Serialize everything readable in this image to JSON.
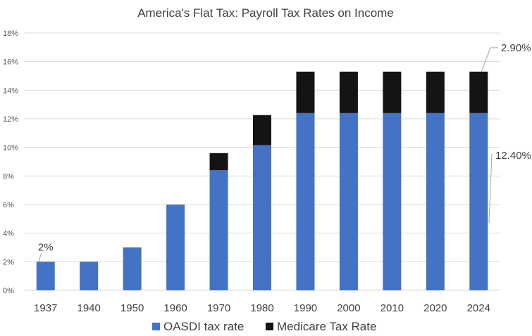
{
  "chart_data": {
    "type": "bar",
    "stacked": true,
    "title": "America's Flat Tax: Payroll Tax Rates on Income",
    "xlabel": "",
    "ylabel": "",
    "ylim": [
      0,
      18
    ],
    "y_ticks": [
      "0%",
      "2%",
      "4%",
      "6%",
      "8%",
      "10%",
      "12%",
      "14%",
      "16%",
      "18%"
    ],
    "categories": [
      "1937",
      "1940",
      "1950",
      "1960",
      "1970",
      "1980",
      "1990",
      "2000",
      "2010",
      "2020",
      "2024"
    ],
    "series": [
      {
        "name": "OASDI tax rate",
        "color": "#4472c4",
        "values": [
          2.0,
          2.0,
          3.0,
          6.0,
          8.4,
          10.16,
          12.4,
          12.4,
          12.4,
          12.4,
          12.4
        ]
      },
      {
        "name": "Medicare Tax Rate",
        "color": "#141414",
        "values": [
          0,
          0,
          0,
          0,
          1.2,
          2.1,
          2.9,
          2.9,
          2.9,
          2.9,
          2.9
        ]
      }
    ],
    "grid": true,
    "legend": "bottom",
    "annotations": [
      {
        "text": "2%",
        "category": "1937",
        "series": "OASDI tax rate"
      },
      {
        "text": "12.40%",
        "category": "2024",
        "series": "OASDI tax rate"
      },
      {
        "text": "2.90%",
        "category": "2024",
        "series": "Medicare Tax Rate"
      }
    ]
  }
}
